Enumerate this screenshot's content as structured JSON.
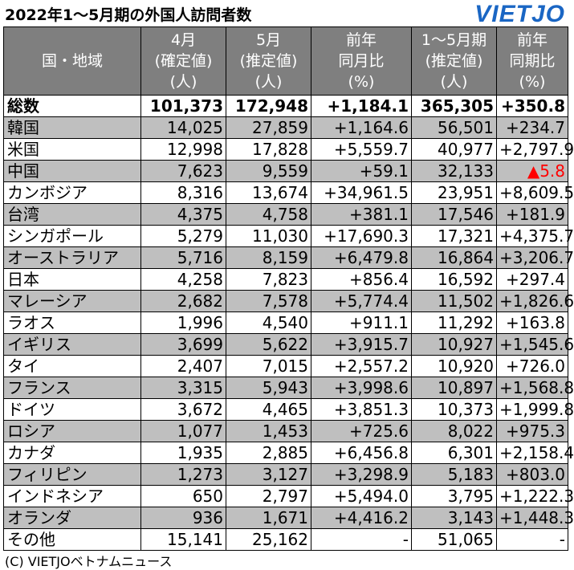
{
  "title": "2022年1～5月期の外国人訪問者数",
  "logo": "VIETJO",
  "footer": "(C) VIETJOベトナムニュース",
  "headers": [
    [
      "国・地域"
    ],
    [
      "4月",
      "(確定値)",
      "(人)"
    ],
    [
      "5月",
      "(推定値)",
      "(人)"
    ],
    [
      "前年",
      "同月比",
      "(%)"
    ],
    [
      "1～5月期",
      "(推定値)",
      "(人)"
    ],
    [
      "前年",
      "同期比",
      "(%)"
    ]
  ],
  "rows": [
    {
      "cells": [
        "総数",
        "101,373",
        "172,948",
        "+1,184.1",
        "365,305",
        "+350.8"
      ],
      "style": "total"
    },
    {
      "cells": [
        "韓国",
        "14,025",
        "27,859",
        "+1,164.6",
        "56,501",
        "+234.7"
      ],
      "style": "shade"
    },
    {
      "cells": [
        "米国",
        "12,998",
        "17,828",
        "+5,559.7",
        "40,977",
        "+2,797.9"
      ],
      "style": "plain"
    },
    {
      "cells": [
        "中国",
        "7,623",
        "9,559",
        "+59.1",
        "32,133",
        "▲5.8"
      ],
      "style": "shade",
      "neg_last": true
    },
    {
      "cells": [
        "カンボジア",
        "8,316",
        "13,674",
        "+34,961.5",
        "23,951",
        "+8,609.5"
      ],
      "style": "plain"
    },
    {
      "cells": [
        "台湾",
        "4,375",
        "4,758",
        "+381.1",
        "17,546",
        "+181.9"
      ],
      "style": "shade"
    },
    {
      "cells": [
        "シンガポール",
        "5,279",
        "11,030",
        "+17,690.3",
        "17,321",
        "+4,375.7"
      ],
      "style": "plain"
    },
    {
      "cells": [
        "オーストラリア",
        "5,716",
        "8,159",
        "+6,479.8",
        "16,864",
        "+3,206.7"
      ],
      "style": "shade"
    },
    {
      "cells": [
        "日本",
        "4,258",
        "7,823",
        "+856.4",
        "16,592",
        "+297.4"
      ],
      "style": "plain"
    },
    {
      "cells": [
        "マレーシア",
        "2,682",
        "7,578",
        "+5,774.4",
        "11,502",
        "+1,826.6"
      ],
      "style": "shade"
    },
    {
      "cells": [
        "ラオス",
        "1,996",
        "4,540",
        "+911.1",
        "11,292",
        "+163.8"
      ],
      "style": "plain"
    },
    {
      "cells": [
        "イギリス",
        "3,699",
        "5,622",
        "+3,915.7",
        "10,927",
        "+1,545.6"
      ],
      "style": "shade"
    },
    {
      "cells": [
        "タイ",
        "2,407",
        "7,015",
        "+2,557.2",
        "10,920",
        "+726.0"
      ],
      "style": "plain"
    },
    {
      "cells": [
        "フランス",
        "3,315",
        "5,943",
        "+3,998.6",
        "10,897",
        "+1,568.8"
      ],
      "style": "shade"
    },
    {
      "cells": [
        "ドイツ",
        "3,672",
        "4,465",
        "+3,851.3",
        "10,373",
        "+1,999.8"
      ],
      "style": "plain"
    },
    {
      "cells": [
        "ロシア",
        "1,077",
        "1,453",
        "+725.6",
        "8,022",
        "+975.3"
      ],
      "style": "shade"
    },
    {
      "cells": [
        "カナダ",
        "1,935",
        "2,885",
        "+6,456.8",
        "6,301",
        "+2,158.4"
      ],
      "style": "plain"
    },
    {
      "cells": [
        "フィリピン",
        "1,273",
        "3,127",
        "+3,298.9",
        "5,183",
        "+803.0"
      ],
      "style": "shade"
    },
    {
      "cells": [
        "インドネシア",
        "650",
        "2,797",
        "+5,494.0",
        "3,795",
        "+1,222.3"
      ],
      "style": "plain"
    },
    {
      "cells": [
        "オランダ",
        "936",
        "1,671",
        "+4,416.2",
        "3,143",
        "+1,448.3"
      ],
      "style": "shade"
    },
    {
      "cells": [
        "その他",
        "15,141",
        "25,162",
        "-",
        "51,065",
        "-"
      ],
      "style": "plain"
    }
  ],
  "colors": {
    "header_bg": "#7f7f7f",
    "shade_bg": "#bfbfbf",
    "negative": "#ff0000",
    "logo": "#1a66c4"
  }
}
